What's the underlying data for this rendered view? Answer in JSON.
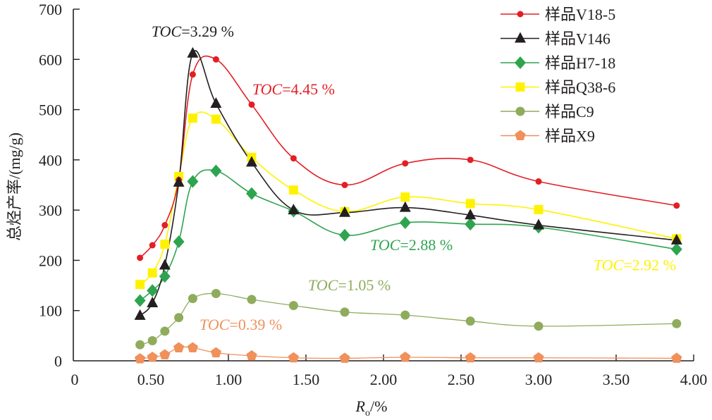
{
  "chart_data": {
    "type": "line",
    "title": "",
    "xlabel": "R",
    "xlabel_sub": "o",
    "xlabel_suffix": "/%",
    "ylabel": "总烃产率/(mg/g)",
    "xlim": [
      0,
      4.0
    ],
    "ylim": [
      0,
      700
    ],
    "grid": false,
    "legend_position": "top-right",
    "x_ticks": [
      0,
      0.5,
      1.0,
      1.5,
      2.0,
      2.5,
      3.0,
      3.5,
      4.0
    ],
    "x_tick_labels": [
      "0",
      "0.50",
      "1.00",
      "1.50",
      "2.00",
      "2.50",
      "3.00",
      "3.50",
      "4.00"
    ],
    "y_ticks": [
      0,
      100,
      200,
      300,
      400,
      500,
      600,
      700
    ],
    "y_tick_labels": [
      "0",
      "100",
      "200",
      "300",
      "400",
      "500",
      "600",
      "700"
    ],
    "x": [
      0.43,
      0.51,
      0.59,
      0.68,
      0.77,
      0.92,
      1.15,
      1.42,
      1.75,
      2.14,
      2.56,
      3.0,
      3.89
    ],
    "series": [
      {
        "name": "样品V18-5",
        "color": "#e31e24",
        "marker": "circle",
        "smooth": true,
        "values": [
          205,
          230,
          270,
          360,
          570,
          600,
          510,
          403,
          350,
          393,
          400,
          357,
          309
        ]
      },
      {
        "name": "样品V146",
        "color": "#231f20",
        "marker": "triangle",
        "smooth": true,
        "values": [
          90,
          115,
          190,
          355,
          612,
          512,
          395,
          300,
          295,
          305,
          290,
          270,
          240
        ]
      },
      {
        "name": "样品H7-18",
        "color": "#2ea44f",
        "marker": "diamond",
        "smooth": true,
        "values": [
          120,
          140,
          168,
          237,
          357,
          378,
          333,
          298,
          250,
          275,
          272,
          266,
          222
        ]
      },
      {
        "name": "样品Q38-6",
        "color": "#fff200",
        "marker": "square",
        "smooth": true,
        "values": [
          152,
          175,
          232,
          367,
          483,
          481,
          405,
          340,
          297,
          326,
          313,
          301,
          243
        ]
      },
      {
        "name": "样品C9",
        "color": "#8fac5c",
        "marker": "circle-large",
        "smooth": true,
        "values": [
          32,
          40,
          59,
          86,
          124,
          134,
          122,
          110,
          97,
          91,
          79,
          69,
          74
        ]
      },
      {
        "name": "样品X9",
        "color": "#f0905a",
        "marker": "pentagon",
        "smooth": true,
        "values": [
          4,
          7,
          12,
          26,
          26,
          16,
          10,
          6,
          5,
          7,
          6,
          6,
          5
        ]
      }
    ],
    "annotations": [
      {
        "italic": "TOC",
        "text": "=3.29 %",
        "color": "#231f20",
        "series": "样品V146",
        "at_x": 0.77,
        "at_y": 645
      },
      {
        "italic": "TOC",
        "text": "=4.45 %",
        "color": "#e31e24",
        "series": "样品V18-5",
        "at_x": 1.42,
        "at_y": 530
      },
      {
        "italic": "TOC",
        "text": "=2.88 %",
        "color": "#2ea44f",
        "series": "样品H7-18",
        "at_x": 2.18,
        "at_y": 220
      },
      {
        "italic": "TOC",
        "text": "=2.92 %",
        "color": "#fff200",
        "series": "样品Q38-6",
        "at_x": 3.62,
        "at_y": 180
      },
      {
        "italic": "TOC",
        "text": "=1.05 %",
        "color": "#8fac5c",
        "series": "样品C9",
        "at_x": 1.78,
        "at_y": 140
      },
      {
        "italic": "TOC",
        "text": "=0.39 %",
        "color": "#f0905a",
        "series": "样品X9",
        "at_x": 1.08,
        "at_y": 62
      }
    ]
  }
}
